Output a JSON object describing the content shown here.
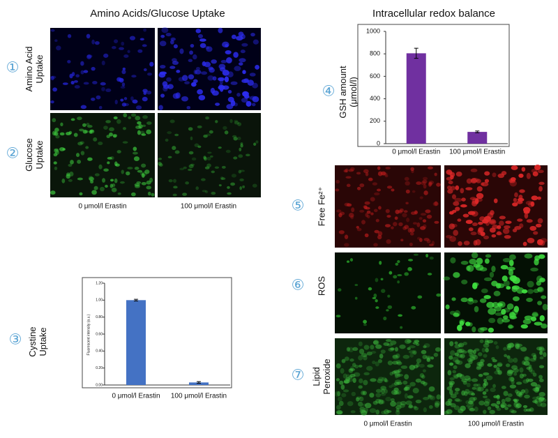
{
  "left": {
    "title": "Amino Acids/Glucose Uptake",
    "rows": [
      {
        "number": "①",
        "label": [
          "Amino Acid",
          "Uptake"
        ]
      },
      {
        "number": "②",
        "label": [
          "Glucose",
          "Uptake"
        ]
      }
    ],
    "columns": [
      "0 μmol/l Erastin",
      "100 μmol/l Erastin"
    ],
    "chart_row": {
      "number": "③",
      "label": [
        "Cystine",
        "Uptake"
      ]
    }
  },
  "right": {
    "title": "Intracellular redox balance",
    "chart_number": "④",
    "rows": [
      {
        "number": "⑤",
        "label": [
          "Free Fe²⁺"
        ]
      },
      {
        "number": "⑥",
        "label": [
          "ROS"
        ]
      },
      {
        "number": "⑦",
        "label": [
          "Lipid",
          "Peroxide"
        ]
      }
    ],
    "columns": [
      "0 μmol/l Erastin",
      "100 μmol/l Erastin"
    ]
  },
  "chart_data": [
    {
      "type": "bar",
      "ylabel": [
        "GSH amount",
        "(μmol/l)"
      ],
      "categories": [
        "0 μmol/l Erastin",
        "100 μmol/l Erastin"
      ],
      "values": [
        805,
        105
      ],
      "errors": [
        45,
        8
      ],
      "color": "#7030a0",
      "ylim": [
        0,
        1000
      ],
      "yticks": [
        0,
        200,
        400,
        600,
        800,
        1000
      ]
    },
    {
      "type": "bar",
      "ylabel": [
        "Fluorescent intensity (a.u.)"
      ],
      "categories": [
        "0 μmol/l Erastin",
        "100 μmol/l Erastin"
      ],
      "values": [
        1.0,
        0.03
      ],
      "errors": [
        0.01,
        0.01
      ],
      "color": "#4472c4",
      "ylim": [
        0,
        1.2
      ],
      "yticks": [
        {
          "value": 0,
          "label": "0.00"
        },
        {
          "value": 0.2,
          "label": "0.20"
        },
        {
          "value": 0.4,
          "label": "0.40"
        },
        {
          "value": 0.6,
          "label": "0.60"
        },
        {
          "value": 0.8,
          "label": "0.80"
        },
        {
          "value": 1.0,
          "label": "1.00"
        },
        {
          "value": 1.2,
          "label": "1.20"
        }
      ]
    }
  ]
}
